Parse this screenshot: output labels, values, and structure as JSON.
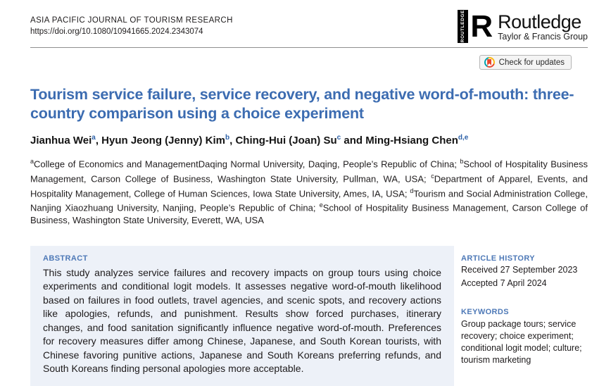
{
  "header": {
    "journal_name": "ASIA PACIFIC JOURNAL OF TOURISM RESEARCH",
    "doi": "https://doi.org/10.1080/10941665.2024.2343074",
    "publisher": {
      "vertical_text": "ROUTLEDGE",
      "mark": "R",
      "wordmark": "Routledge",
      "tagline": "Taylor & Francis Group"
    },
    "check_updates_label": "Check for updates"
  },
  "article": {
    "title": "Tourism service failure, service recovery, and negative word-of-mouth: three-country comparison using a choice experiment",
    "authors": [
      {
        "name": "Jianhua Wei",
        "sup": "a",
        "sep": ", "
      },
      {
        "name": "Hyun Jeong (Jenny) Kim",
        "sup": "b",
        "sep": ", "
      },
      {
        "name": "Ching-Hui (Joan) Su",
        "sup": "c",
        "sep": " and "
      },
      {
        "name": "Ming-Hsiang Chen",
        "sup": "d,e",
        "sep": ""
      }
    ],
    "affiliations": [
      {
        "sup": "a",
        "text": "College of Economics and ManagementDaqing Normal University, Daqing, People’s Republic of China; "
      },
      {
        "sup": "b",
        "text": "School of Hospitality Business Management, Carson College of Business, Washington State University, Pullman, WA, USA; "
      },
      {
        "sup": "c",
        "text": "Department of Apparel, Events, and Hospitality Management, College of Human Sciences, Iowa State University, Ames, IA, USA; "
      },
      {
        "sup": "d",
        "text": "Tourism and Social Administration College, Nanjing Xiaozhuang University, Nanjing, People’s Republic of China; "
      },
      {
        "sup": "e",
        "text": "School of Hospitality Business Management, Carson College of Business, Washington State University, Everett, WA, USA"
      }
    ]
  },
  "abstract": {
    "heading": "ABSTRACT",
    "text": "This study analyzes service failures and recovery impacts on group tours using choice experiments and conditional logit models. It assesses negative word-of-mouth likelihood based on failures in food outlets, travel agencies, and scenic spots, and recovery actions like apologies, refunds, and punishment. Results show forced purchases, itinerary changes, and food sanitation significantly influence negative word-of-mouth. Preferences for recovery measures differ among Chinese, Japanese, and South Korean tourists, with Chinese favoring punitive actions, Japanese and South Koreans preferring refunds, and South Koreans finding personal apologies more acceptable."
  },
  "sidebar": {
    "article_history": {
      "heading": "ARTICLE HISTORY",
      "received": "Received 27 September 2023",
      "accepted": "Accepted 7 April 2024"
    },
    "keywords": {
      "heading": "KEYWORDS",
      "text": "Group package tours; service recovery; choice experiment; conditional logit model; culture; tourism marketing"
    }
  },
  "colors": {
    "title_blue": "#3c6cb1",
    "section_heading_blue": "#4e79b7",
    "superscript_blue": "#2d61a8",
    "abstract_background": "#edf1f8",
    "body_text": "#231f20"
  }
}
